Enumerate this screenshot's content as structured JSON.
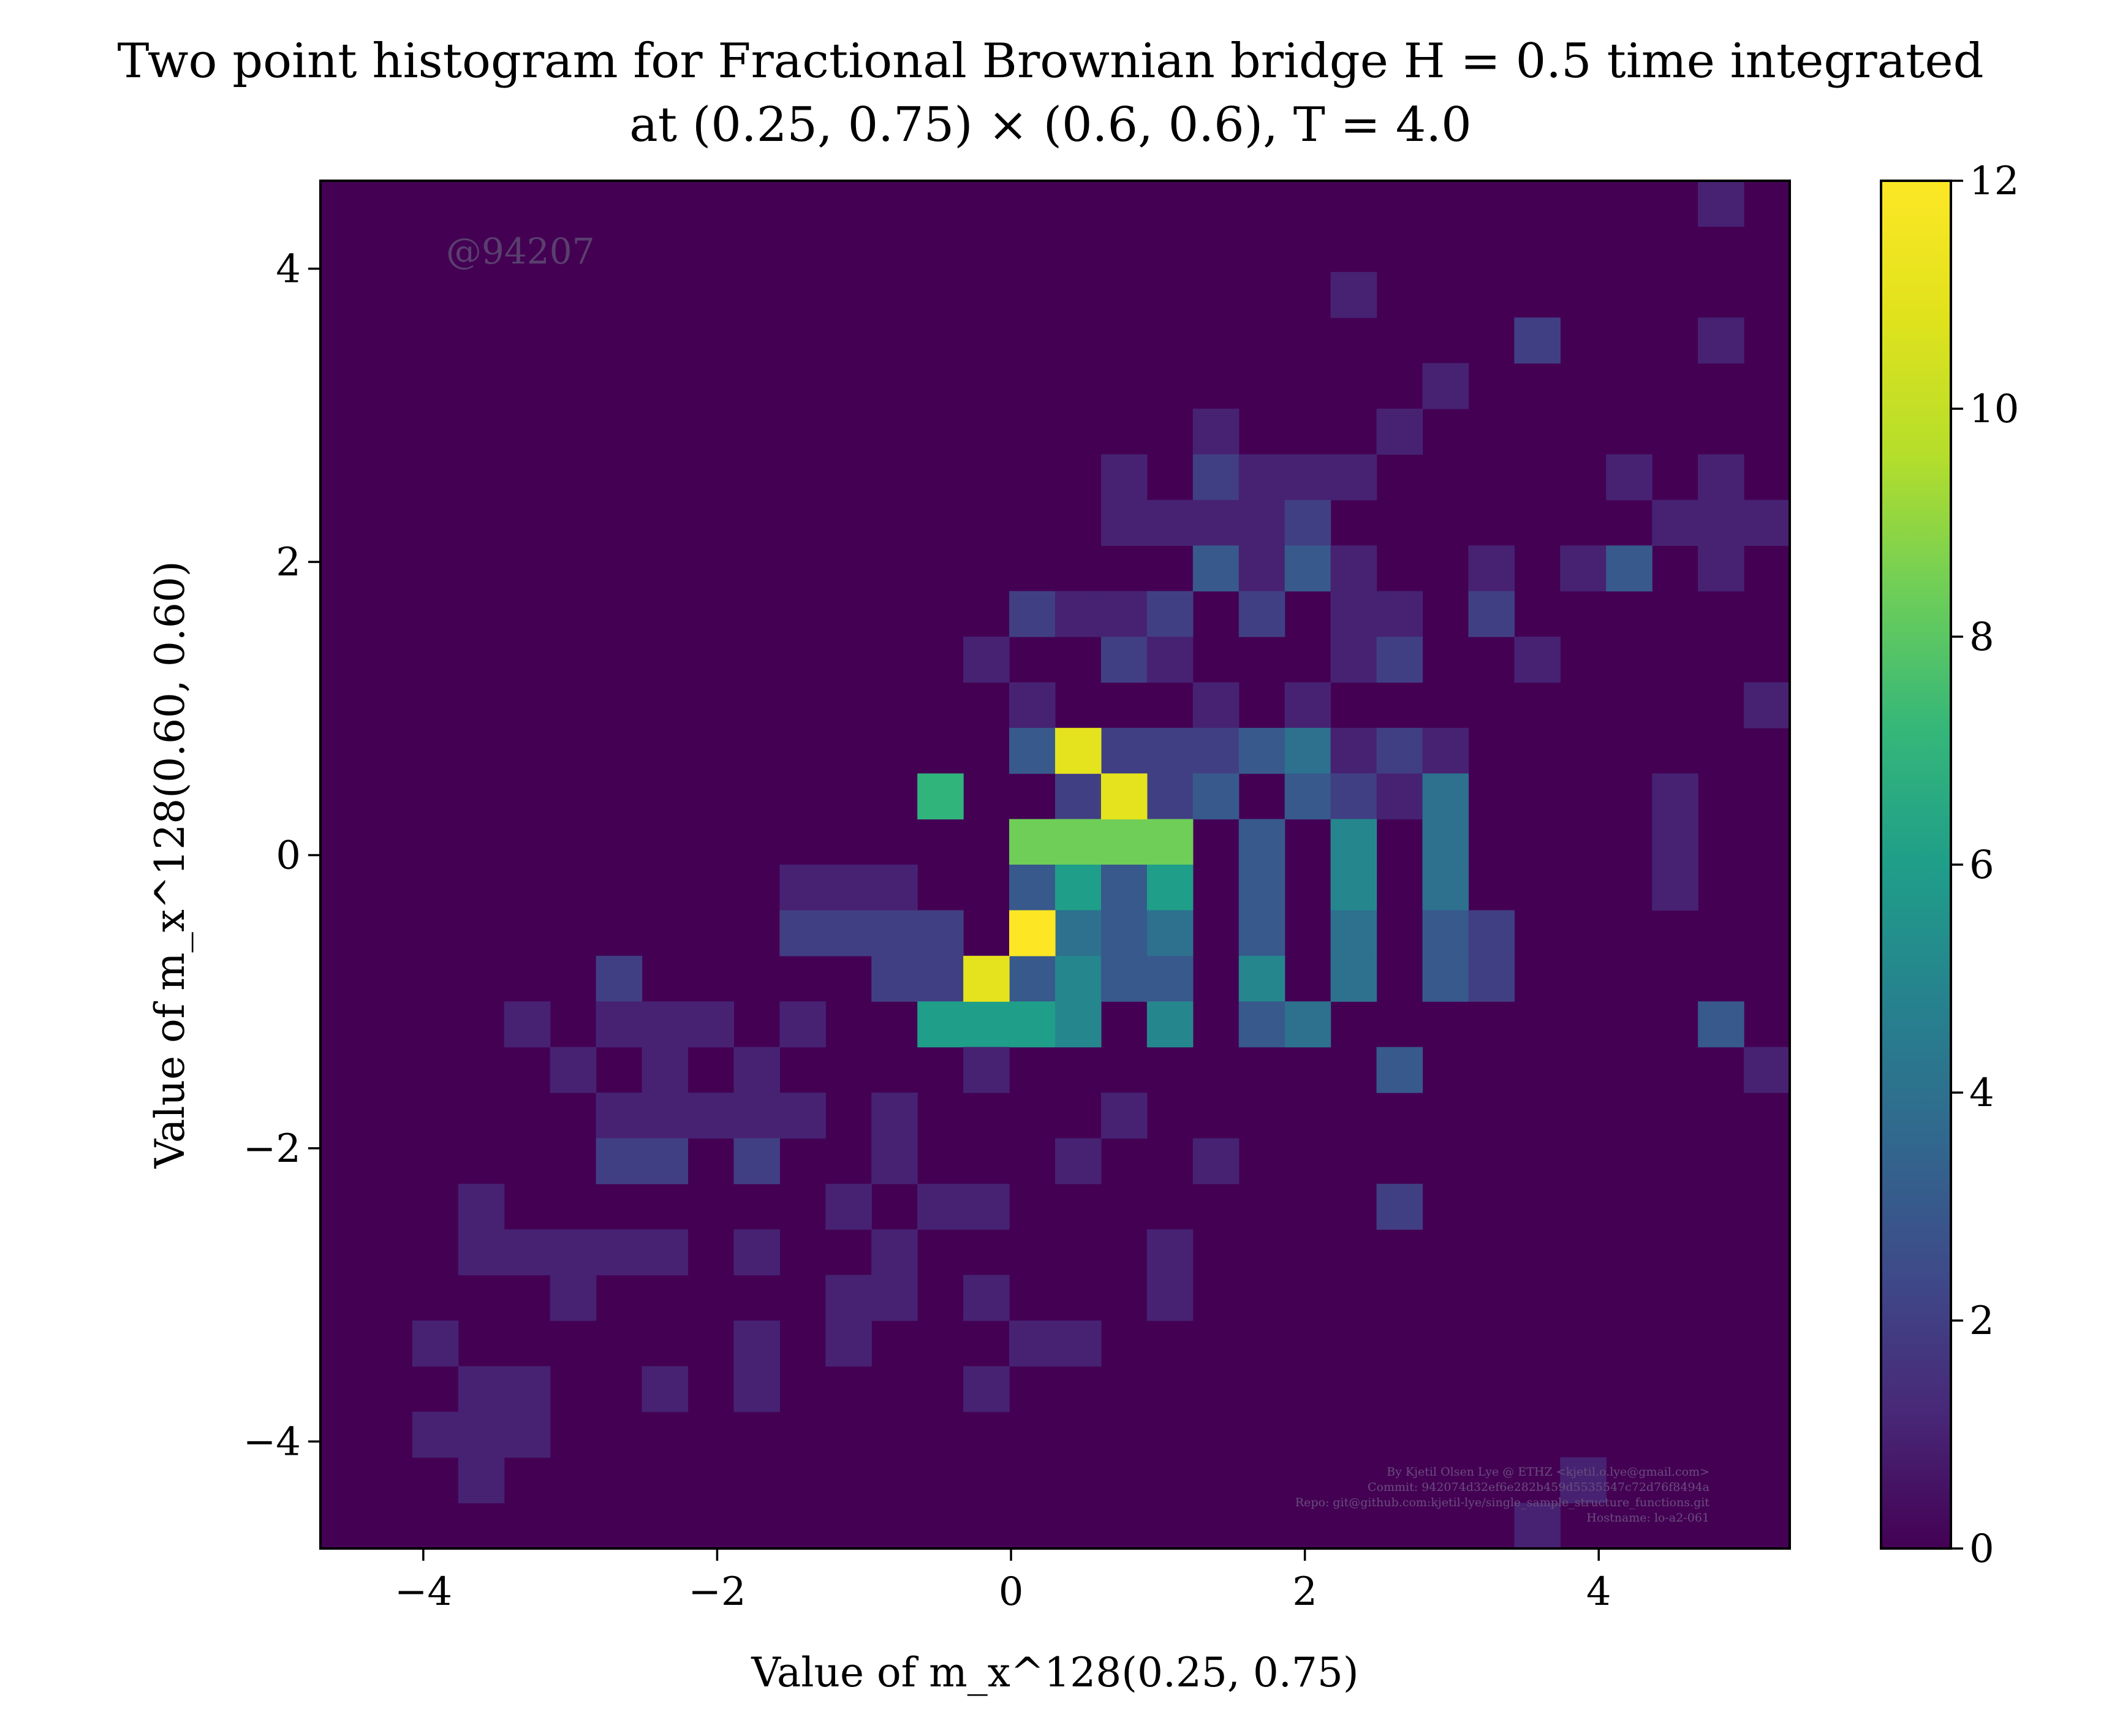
{
  "chart_data": {
    "type": "heatmap",
    "title_line1": "Two point histogram for Fractional Brownian bridge H = 0.5 time integrated",
    "title_line2": "at (0.25, 0.75) × (0.6, 0.6), T = 4.0",
    "xlabel": "Value of m_x^128(0.25, 0.75)",
    "ylabel": "Value of m_x^128(0.60, 0.60)",
    "xlim": [
      -4.7,
      5.3
    ],
    "ylim": [
      -4.73,
      4.6
    ],
    "xticks": [
      -4,
      -2,
      0,
      2,
      4
    ],
    "xtick_labels": [
      "−4",
      "−2",
      "0",
      "2",
      "4"
    ],
    "yticks": [
      -4,
      -2,
      0,
      2,
      4
    ],
    "ytick_labels": [
      "−4",
      "−2",
      "0",
      "2",
      "4"
    ],
    "colorbar": {
      "min": 0,
      "max": 12,
      "ticks": [
        0,
        2,
        4,
        6,
        8,
        10,
        12
      ],
      "colormap": "viridis"
    },
    "bins": {
      "nx": 32,
      "ny": 30
    },
    "counts": [
      "..............................1.",
      "................................",
      "......................1.........",
      "..........................2...1.",
      "........................1.......",
      "...................1...1........",
      ".................1.2111.....1.1.",
      ".................11112.......111",
      "...................3131..1.13.1.",
      "...............2112.2.11.2......",
      "..............1..21...12..1.....",
      "...............1...1.1.........1",
      "...............3.22234121.......",
      ".............7..2323.3214....1..",
      "...............8888.3.5.4....1..",
      "..........111..3636.3.5.4....1..",
      "..........2222.3434.3.4.32......",
      "......2.....2213533.5.4.32......",
      "....1.111.1..6665.5.34........3.",
      ".....1.1.1....1........3.......1",
      "......11111.1....1..............",
      "......22.2..1...1..1............",
      "...1.......1.11........2........",
      "...11111.1..1.....1.............",
      ".....1.....11.1...1.............",
      "..1......1.1...11...............",
      "...11..1.1....1.................",
      "..111...........................",
      "...1.......................1....",
      "..........................1....."
    ]
  },
  "watermark": "@94207",
  "credits": [
    "By Kjetil Olsen Lye @ ETHZ <kjetil.o.lye@gmail.com>",
    "Commit: 942074d32ef6e282b459d5535547c72d76f8494a",
    "Repo: git@github.com:kjetil-lye/single_sample_structure_functions.git",
    "Hostname: lo-a2-061"
  ]
}
